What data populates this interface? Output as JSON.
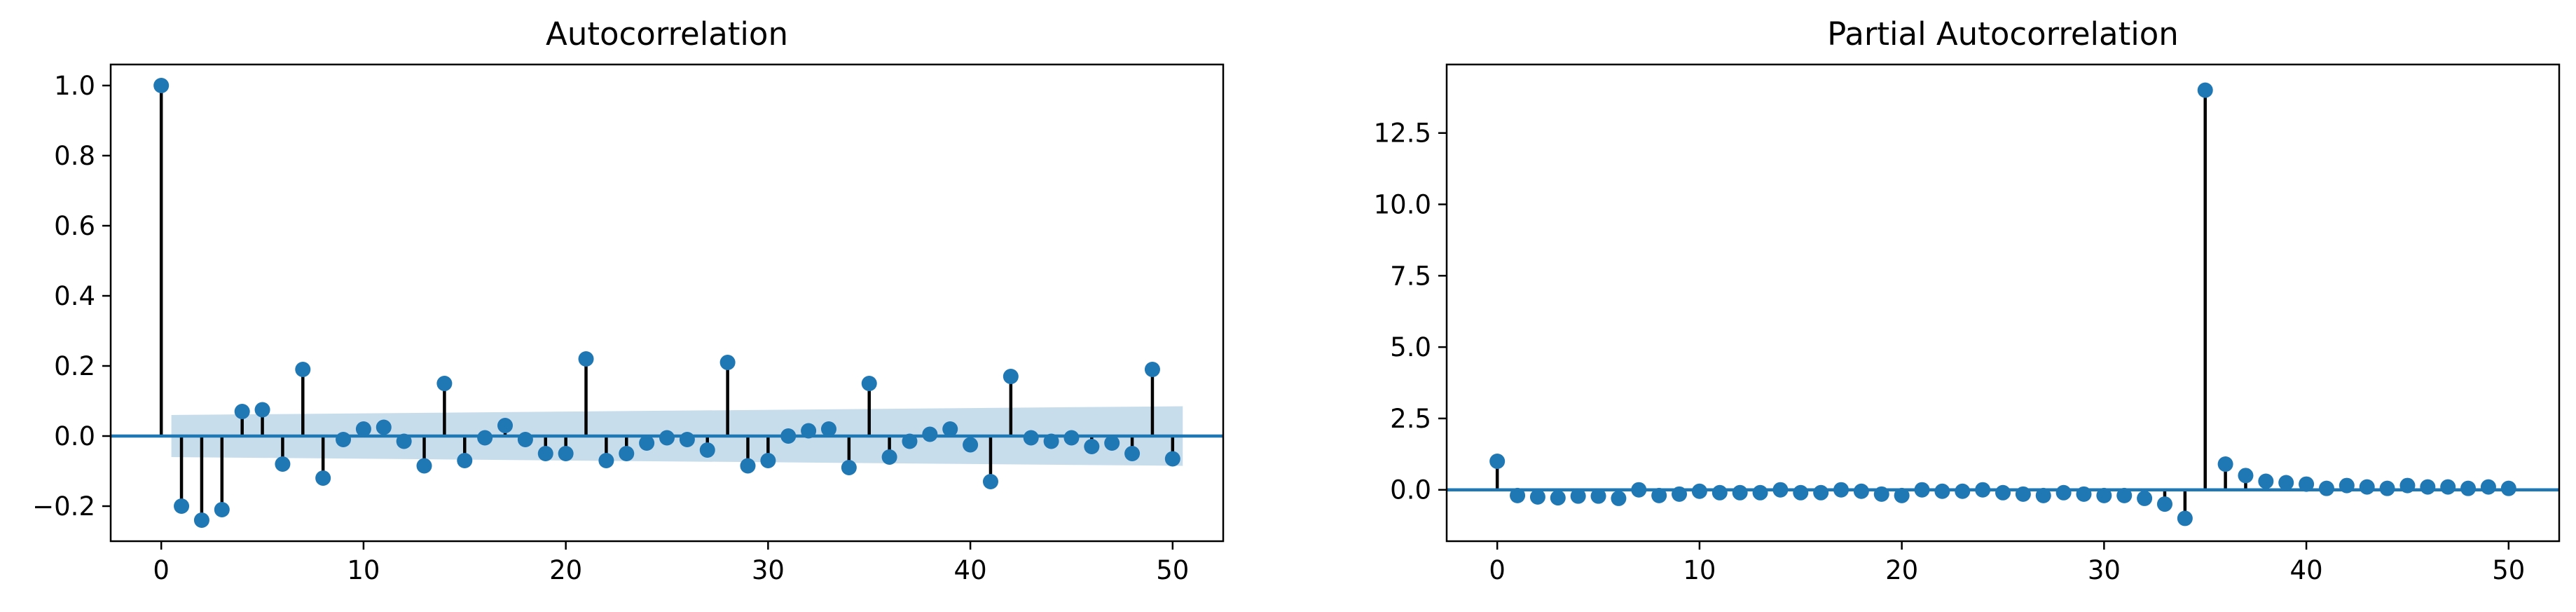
{
  "chart_data": [
    {
      "type": "stem",
      "title": "Autocorrelation",
      "xlabel": "",
      "ylabel": "",
      "xlim": [
        -2.5,
        52.5
      ],
      "ylim": [
        -0.3,
        1.06
      ],
      "xticks": [
        0,
        10,
        20,
        30,
        40,
        50
      ],
      "xtick_labels": [
        "0",
        "10",
        "20",
        "30",
        "40",
        "50"
      ],
      "yticks": [
        -0.2,
        0.0,
        0.2,
        0.4,
        0.6,
        0.8,
        1.0
      ],
      "ytick_labels": [
        "−0.2",
        "0.0",
        "0.2",
        "0.4",
        "0.6",
        "0.8",
        "1.0"
      ],
      "x": [
        0,
        1,
        2,
        3,
        4,
        5,
        6,
        7,
        8,
        9,
        10,
        11,
        12,
        13,
        14,
        15,
        16,
        17,
        18,
        19,
        20,
        21,
        22,
        23,
        24,
        25,
        26,
        27,
        28,
        29,
        30,
        31,
        32,
        33,
        34,
        35,
        36,
        37,
        38,
        39,
        40,
        41,
        42,
        43,
        44,
        45,
        46,
        47,
        48,
        49,
        50
      ],
      "values": [
        1.0,
        -0.2,
        -0.24,
        -0.21,
        0.07,
        0.075,
        -0.08,
        0.19,
        -0.12,
        -0.01,
        0.02,
        0.025,
        -0.015,
        -0.085,
        0.15,
        -0.07,
        -0.005,
        0.03,
        -0.01,
        -0.05,
        -0.05,
        0.22,
        -0.07,
        -0.05,
        -0.02,
        -0.005,
        -0.01,
        -0.04,
        0.21,
        -0.085,
        -0.07,
        0.0,
        0.015,
        0.02,
        -0.09,
        0.15,
        -0.06,
        -0.015,
        0.005,
        0.02,
        -0.025,
        -0.13,
        0.17,
        -0.005,
        -0.015,
        -0.005,
        -0.03,
        -0.02,
        -0.05,
        0.19,
        -0.065
      ],
      "confint_x": [
        0.5,
        50.5
      ],
      "confint_upper": [
        0.06,
        0.085
      ],
      "confint_lower": [
        -0.06,
        -0.085
      ],
      "colors": {
        "marker": "#1f77b4",
        "stem": "#000000",
        "baseline": "#1f77b4",
        "band": "#1f77b4"
      }
    },
    {
      "type": "stem",
      "title": "Partial Autocorrelation",
      "xlabel": "",
      "ylabel": "",
      "xlim": [
        -2.5,
        52.5
      ],
      "ylim": [
        -1.8,
        14.9
      ],
      "xticks": [
        0,
        10,
        20,
        30,
        40,
        50
      ],
      "xtick_labels": [
        "0",
        "10",
        "20",
        "30",
        "40",
        "50"
      ],
      "yticks": [
        0.0,
        2.5,
        5.0,
        7.5,
        10.0,
        12.5
      ],
      "ytick_labels": [
        "0.0",
        "2.5",
        "5.0",
        "7.5",
        "10.0",
        "12.5"
      ],
      "x": [
        0,
        1,
        2,
        3,
        4,
        5,
        6,
        7,
        8,
        9,
        10,
        11,
        12,
        13,
        14,
        15,
        16,
        17,
        18,
        19,
        20,
        21,
        22,
        23,
        24,
        25,
        26,
        27,
        28,
        29,
        30,
        31,
        32,
        33,
        34,
        35,
        36,
        37,
        38,
        39,
        40,
        41,
        42,
        43,
        44,
        45,
        46,
        47,
        48,
        49,
        50
      ],
      "values": [
        1.0,
        -0.2,
        -0.25,
        -0.28,
        -0.22,
        -0.22,
        -0.3,
        0.0,
        -0.2,
        -0.15,
        -0.05,
        -0.1,
        -0.1,
        -0.1,
        0.0,
        -0.1,
        -0.1,
        0.0,
        -0.05,
        -0.15,
        -0.2,
        0.0,
        -0.05,
        -0.05,
        0.0,
        -0.1,
        -0.15,
        -0.2,
        -0.1,
        -0.15,
        -0.2,
        -0.2,
        -0.3,
        -0.5,
        -1.0,
        14.0,
        0.9,
        0.5,
        0.3,
        0.25,
        0.2,
        0.05,
        0.15,
        0.1,
        0.05,
        0.15,
        0.1,
        0.1,
        0.05,
        0.1,
        0.05
      ],
      "colors": {
        "marker": "#1f77b4",
        "stem": "#000000",
        "baseline": "#1f77b4"
      }
    }
  ]
}
